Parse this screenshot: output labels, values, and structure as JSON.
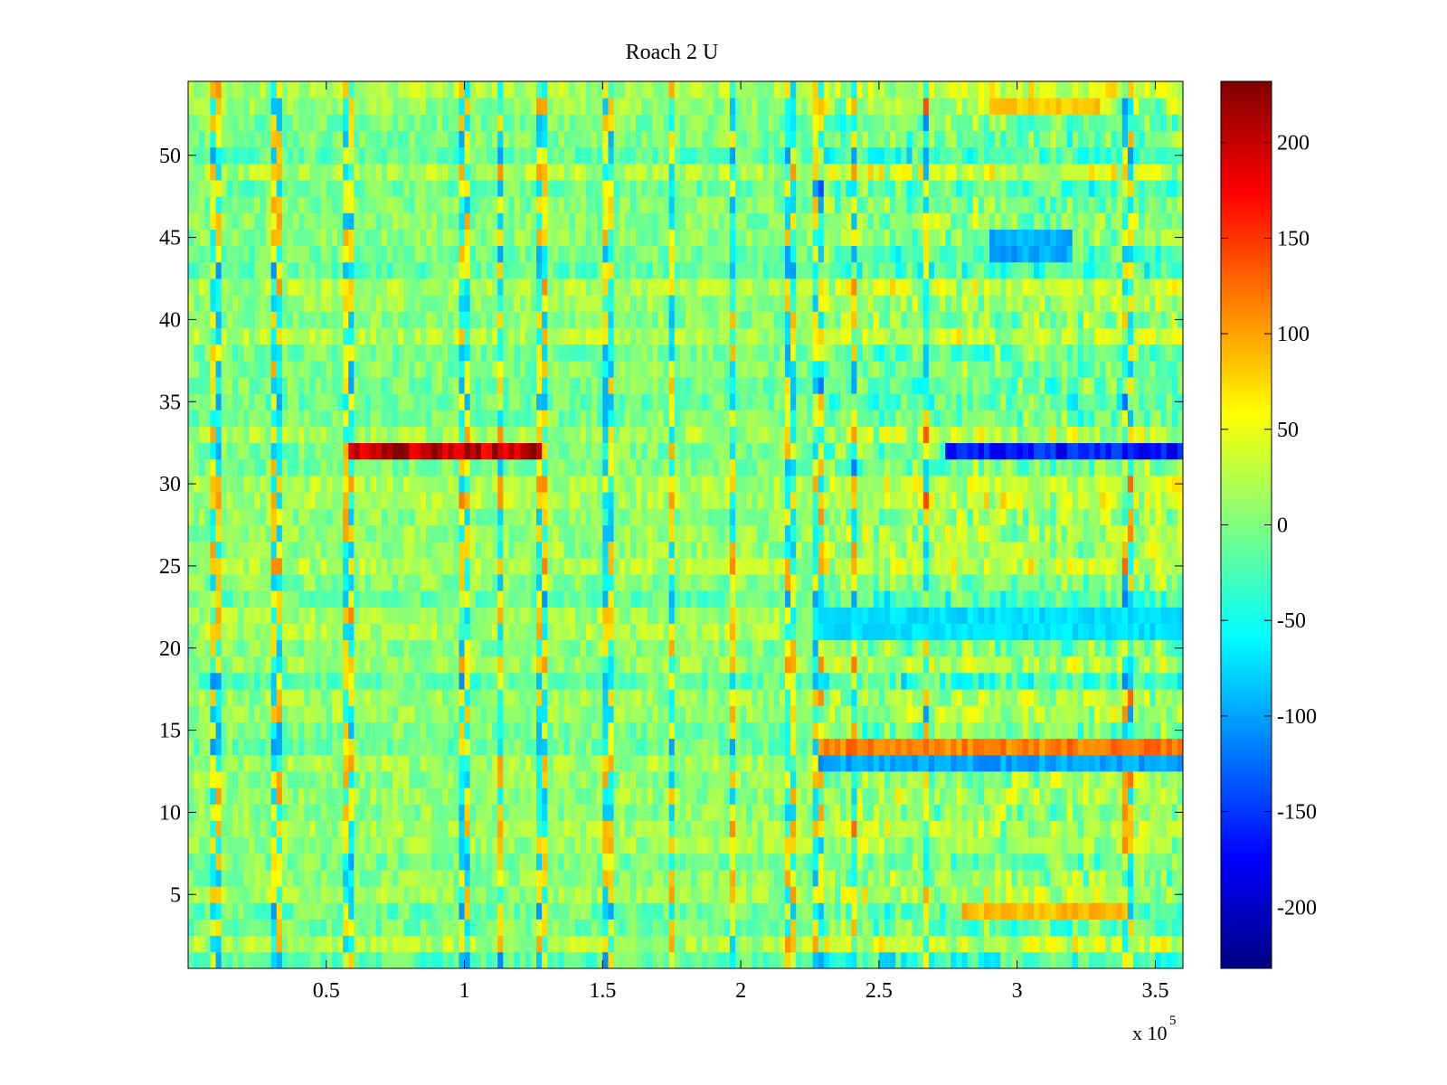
{
  "chart_data": {
    "type": "heatmap",
    "title": "Roach 2 U",
    "xlabel": "",
    "ylabel": "",
    "x_multiplier_label": "x 10",
    "x_multiplier_exponent": "5",
    "xlim": [
      0,
      360000
    ],
    "ylim": [
      0.5,
      54.5
    ],
    "xticks": [
      50000,
      100000,
      150000,
      200000,
      250000,
      300000,
      350000
    ],
    "xtick_labels": [
      "0.5",
      "1",
      "1.5",
      "2",
      "2.5",
      "3",
      "3.5"
    ],
    "yticks": [
      5,
      10,
      15,
      20,
      25,
      30,
      35,
      40,
      45,
      50
    ],
    "ytick_labels": [
      "5",
      "10",
      "15",
      "20",
      "25",
      "30",
      "35",
      "40",
      "45",
      "50"
    ],
    "rows": 54,
    "colormap": "jet",
    "colorbar": {
      "clim": [
        -232,
        232
      ],
      "ticks": [
        -200,
        -150,
        -100,
        -50,
        0,
        50,
        100,
        150,
        200
      ],
      "tick_labels": [
        "-200",
        "-150",
        "-100",
        "-50",
        "0",
        "50",
        "100",
        "150",
        "200"
      ]
    },
    "features": [
      {
        "rows": [
          32,
          32
        ],
        "x": [
          58000,
          128000
        ],
        "value": 220,
        "note": "strong positive band"
      },
      {
        "rows": [
          32,
          32
        ],
        "x": [
          275000,
          360000
        ],
        "value": -180,
        "note": "strong negative band"
      },
      {
        "rows": [
          14,
          14
        ],
        "x": [
          228000,
          360000
        ],
        "value": 130
      },
      {
        "rows": [
          13,
          13
        ],
        "x": [
          228000,
          360000
        ],
        "value": -110
      },
      {
        "rows": [
          21,
          22
        ],
        "x": [
          228000,
          360000
        ],
        "value": -80
      },
      {
        "rows": [
          44,
          45
        ],
        "x": [
          290000,
          320000
        ],
        "value": -110
      },
      {
        "rows": [
          4,
          4
        ],
        "x": [
          280000,
          340000
        ],
        "value": 100
      },
      {
        "rows": [
          53,
          53
        ],
        "x": [
          290000,
          330000
        ],
        "value": 90
      }
    ]
  }
}
